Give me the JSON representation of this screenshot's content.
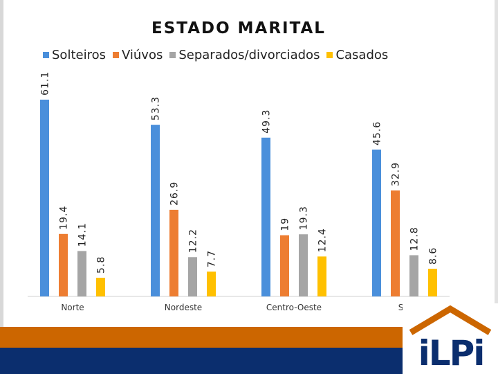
{
  "chart_data": {
    "type": "bar",
    "title": "ESTADO MARITAL",
    "categories": [
      "Norte",
      "Nordeste",
      "Centro-Oeste",
      "Sul"
    ],
    "series": [
      {
        "name": "Solteiros",
        "color": "#4a8fdb",
        "values": [
          61.1,
          53.3,
          49.3,
          45.6
        ],
        "labels": [
          "61.1",
          "53.3",
          "49.3",
          "45.6"
        ]
      },
      {
        "name": "Viúvos",
        "color": "#ed7d31",
        "values": [
          19.4,
          26.9,
          19,
          32.9
        ],
        "labels": [
          "19.4",
          "26.9",
          "19",
          "32.9"
        ]
      },
      {
        "name": "Separados/divorciados",
        "color": "#a5a5a5",
        "values": [
          14.1,
          12.2,
          19.3,
          12.8
        ],
        "labels": [
          "14.1",
          "12.2",
          "19.3",
          "12.8"
        ]
      },
      {
        "name": "Casados",
        "color": "#ffc000",
        "values": [
          5.8,
          7.7,
          12.4,
          8.6
        ],
        "labels": [
          "5.8",
          "7.7",
          "12.4",
          "8.6"
        ]
      }
    ],
    "xlabel": "",
    "ylabel": "",
    "ylim": [
      0,
      62
    ],
    "grid": false,
    "legend": "top"
  },
  "logo": {
    "text": "iLPi",
    "roof_color": "#cc6600",
    "text_color": "#0b2e6e"
  }
}
